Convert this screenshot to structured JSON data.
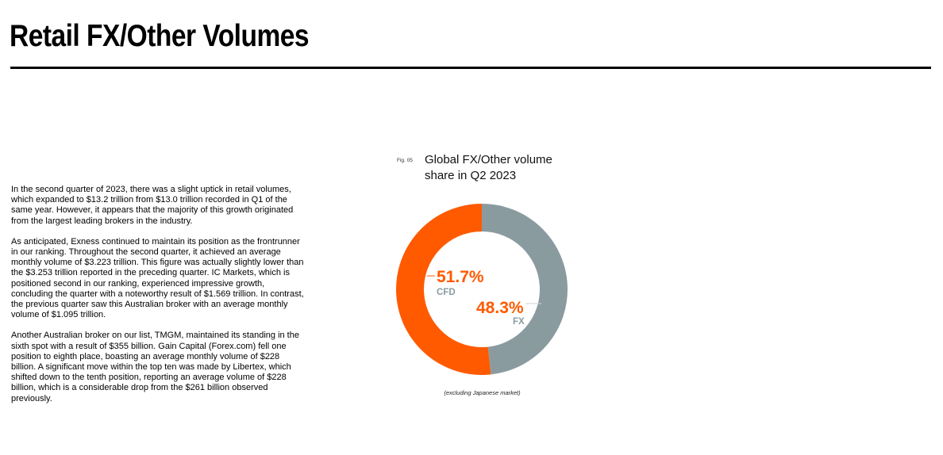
{
  "page": {
    "title": "Retail FX/Other Volumes"
  },
  "body": {
    "paragraphs": [
      "In the second quarter of 2023, there was a slight uptick in retail volumes, which expanded to $13.2 trillion from $13.0 trillion recorded in Q1 of the same year. However, it appears that the majority of this growth originated from the largest leading brokers in the industry.",
      "As anticipated, Exness continued to maintain its position as the frontrunner in our ranking. Throughout the second quarter, it achieved an average monthly volume of $3.223 trillion. This figure was actually slightly lower than the $3.253 trillion reported in the preceding quarter. IC Markets, which is positioned second in our ranking, experienced impressive growth, concluding the quarter with a noteworthy result of $1.569 trillion. In contrast, the previous quarter saw this Australian broker with an average monthly volume of $1.095 trillion.",
      "Another Australian broker on our list, TMGM, maintained its standing in the sixth spot with a result of $355 billion. Gain Capital (Forex.com) fell one position to eighth place, boasting an average monthly volume of $228 billion. A significant move within the top ten was made by Libertex, which shifted down to the tenth position, reporting an average volume of $228 billion, which is a considerable drop from the $261 billion observed previously."
    ]
  },
  "figure": {
    "label": "Fig. 05",
    "note": "(excluding Japanese market)"
  },
  "chart_data": {
    "type": "pie",
    "style": "donut",
    "title": "Global FX/Other volume share in Q2 2023",
    "slices": [
      {
        "label": "CFD",
        "value": 51.7,
        "display": "51.7%",
        "color": "#FF5A00"
      },
      {
        "label": "FX",
        "value": 48.3,
        "display": "48.3%",
        "color": "#8A9BA0"
      }
    ],
    "value_color": "#FF5A00",
    "label_color": "#8A9BA0"
  }
}
